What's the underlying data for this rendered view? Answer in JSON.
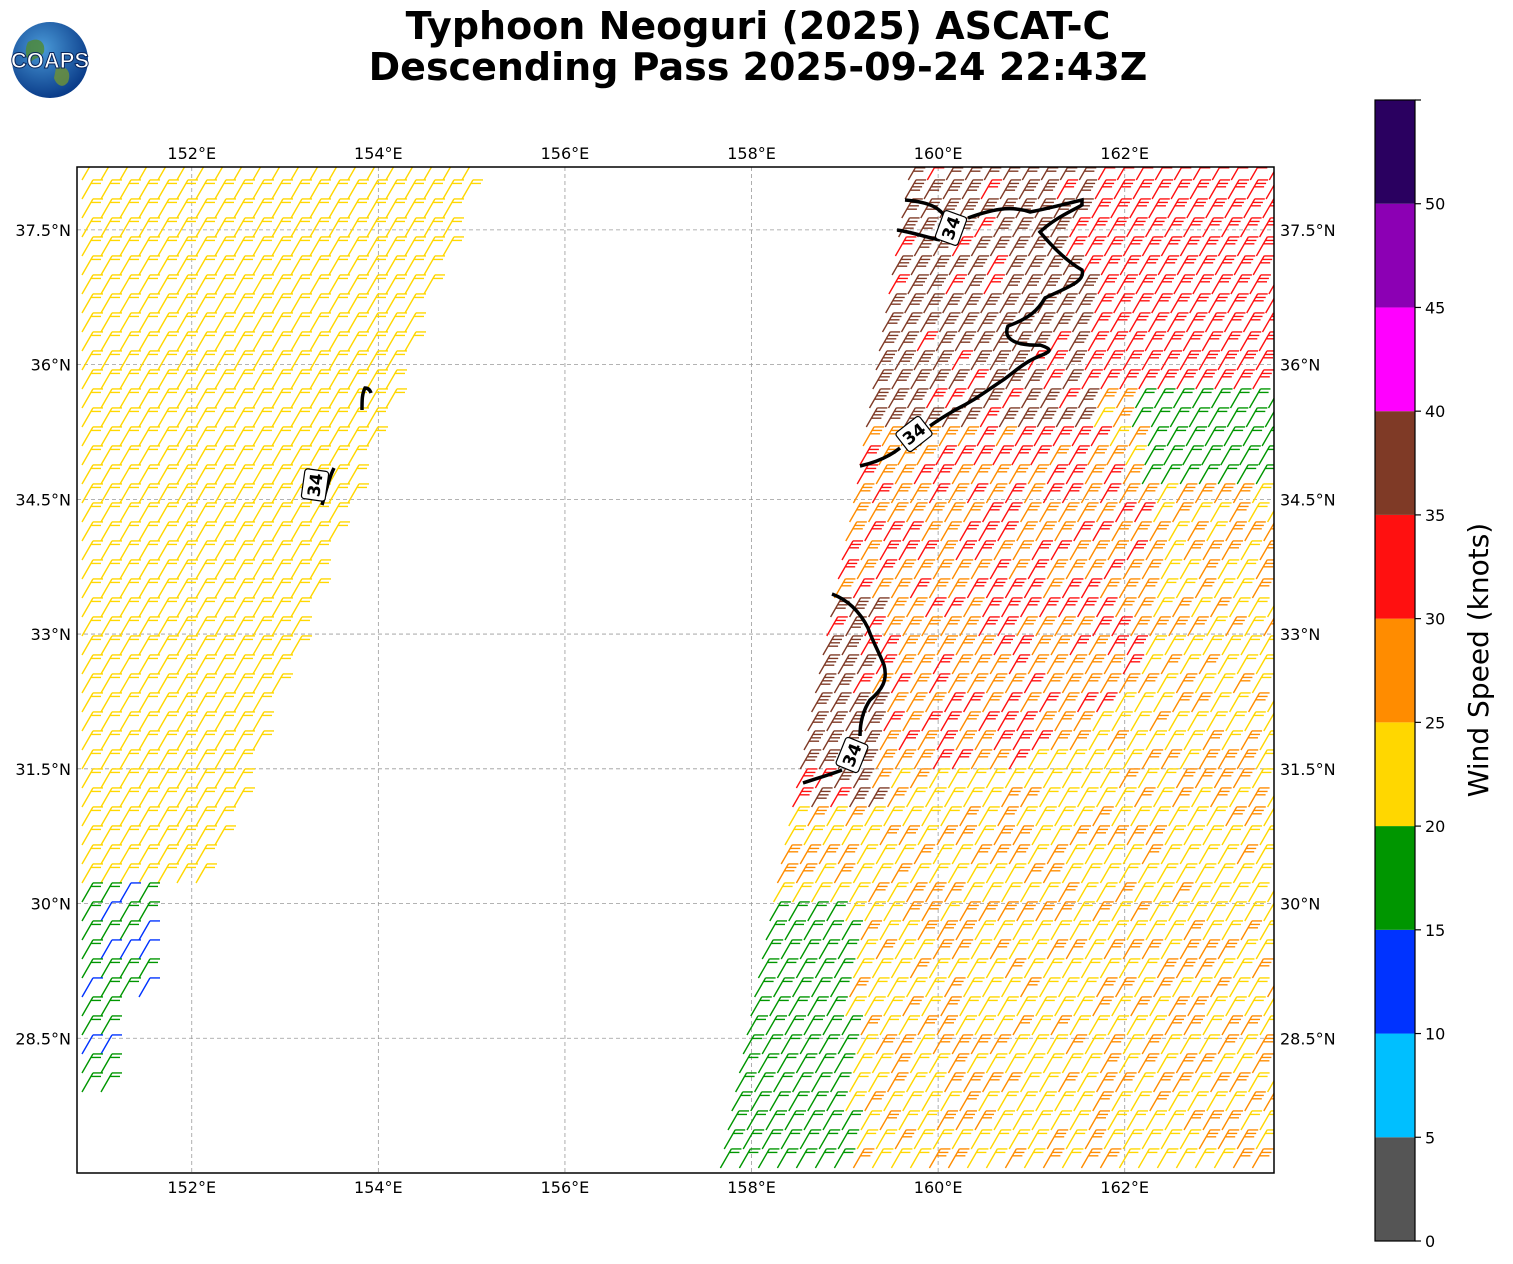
{
  "title": {
    "line1": "Typhoon Neoguri (2025) ASCAT-C",
    "line2": "Descending Pass 2025-09-24 22:43Z"
  },
  "logo": {
    "text": "COAPS",
    "icon": "globe-logo-icon"
  },
  "map": {
    "lon_range": [
      150.77,
      163.6
    ],
    "lat_range": [
      27.0,
      38.2
    ],
    "lon_ticks": [
      "152°E",
      "154°E",
      "156°E",
      "158°E",
      "160°E",
      "162°E"
    ],
    "lon_tick_values": [
      152,
      154,
      156,
      158,
      160,
      162
    ],
    "lat_ticks": [
      "28.5°N",
      "30°N",
      "31.5°N",
      "33°N",
      "34.5°N",
      "36°N",
      "37.5°N"
    ],
    "lat_tick_values": [
      28.5,
      30,
      31.5,
      33,
      34.5,
      36,
      37.5
    ],
    "grid": true,
    "contour_label": "34"
  },
  "colorbar": {
    "label": "Wind Speed (knots)",
    "ticks": [
      "0",
      "5",
      "10",
      "15",
      "20",
      "25",
      "30",
      "35",
      "40",
      "45",
      "50"
    ],
    "bins": [
      {
        "min": 0,
        "max": 5,
        "color": "#555555"
      },
      {
        "min": 5,
        "max": 10,
        "color": "#00bfff"
      },
      {
        "min": 10,
        "max": 15,
        "color": "#0033ff"
      },
      {
        "min": 15,
        "max": 20,
        "color": "#009600"
      },
      {
        "min": 20,
        "max": 25,
        "color": "#ffd700"
      },
      {
        "min": 25,
        "max": 30,
        "color": "#ff8c00"
      },
      {
        "min": 30,
        "max": 35,
        "color": "#ff1010"
      },
      {
        "min": 35,
        "max": 40,
        "color": "#7f3a26"
      },
      {
        "min": 40,
        "max": 45,
        "color": "#ff00ff"
      },
      {
        "min": 45,
        "max": 50,
        "color": "#8c00b4"
      },
      {
        "min": 50,
        "max": 55,
        "color": "#2a0060"
      }
    ]
  }
}
